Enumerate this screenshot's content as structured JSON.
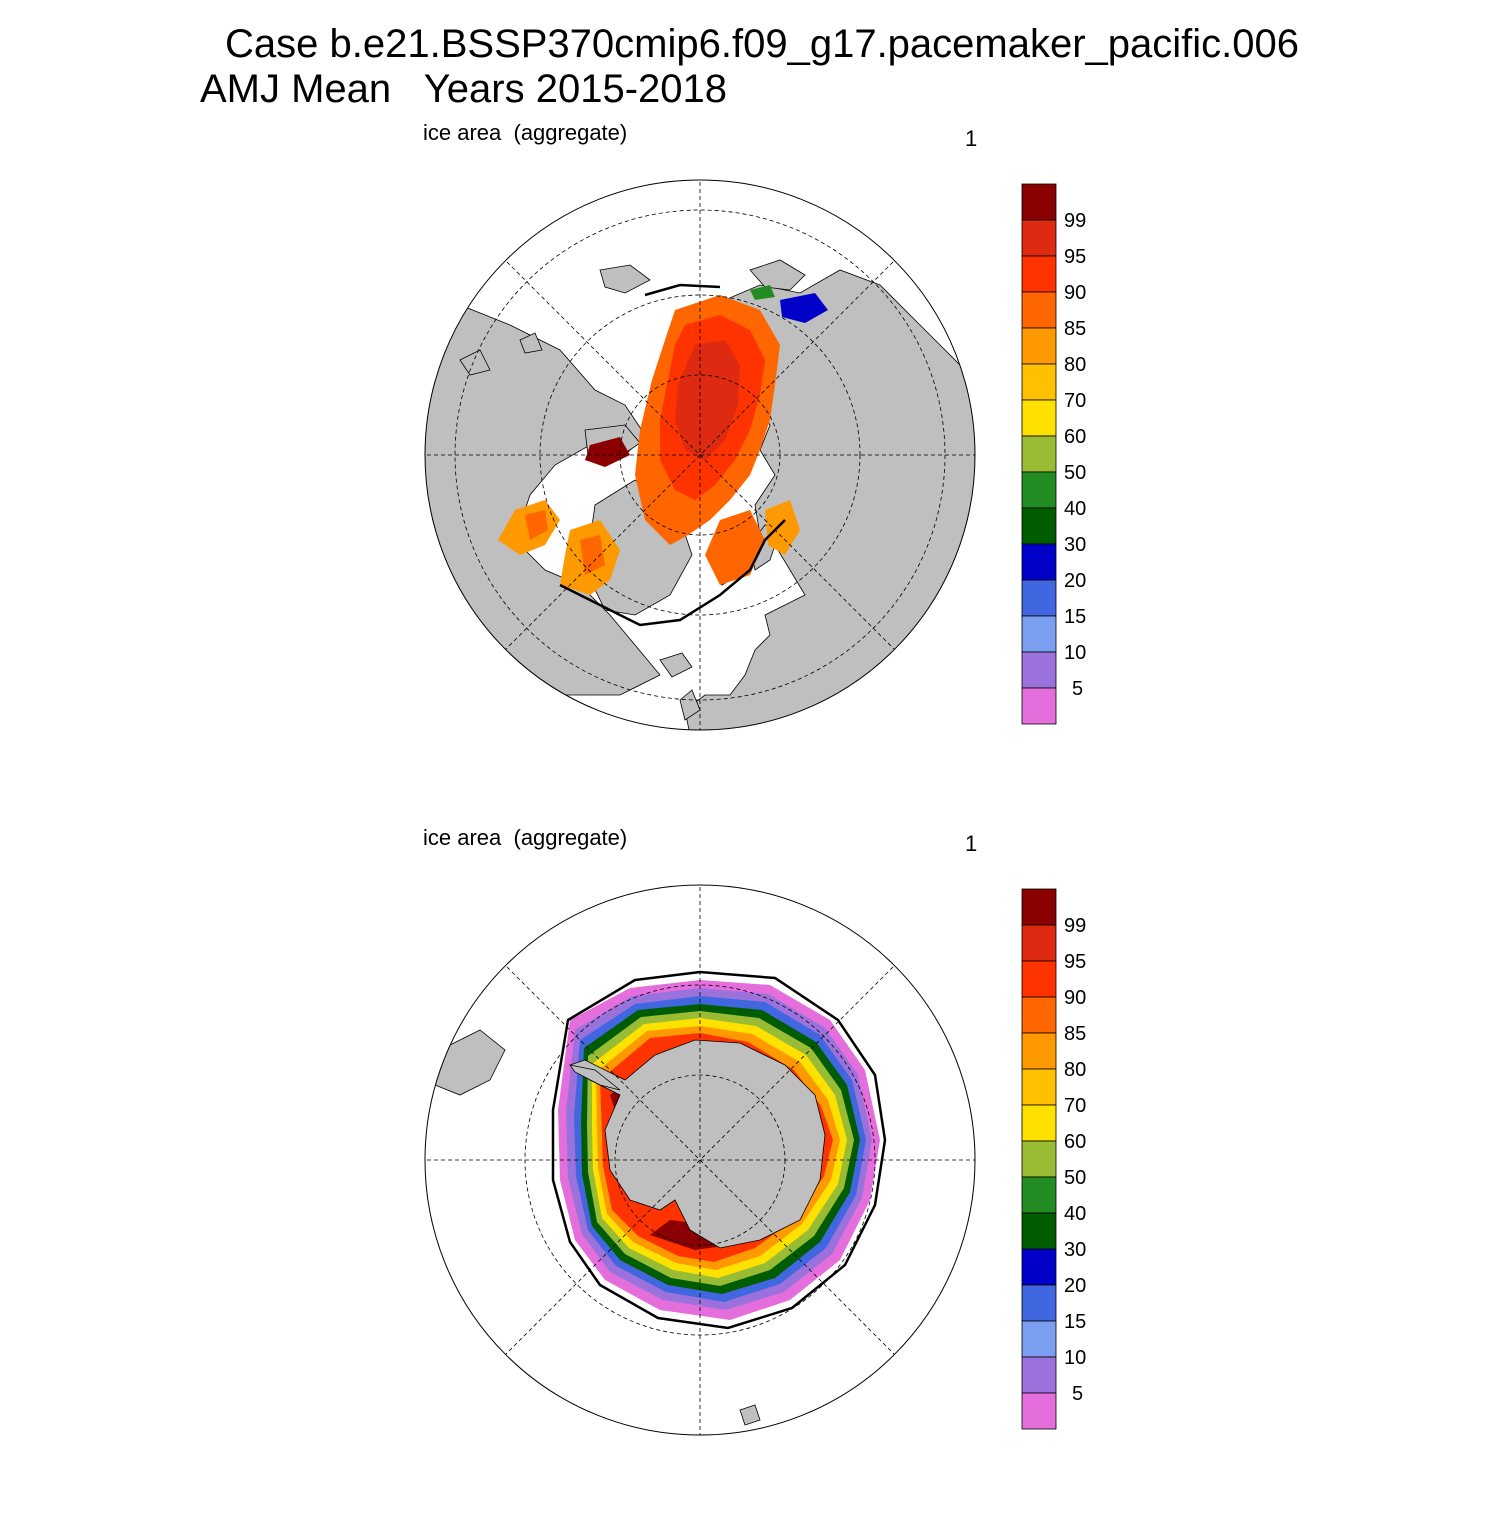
{
  "title": {
    "line1": "Case b.e21.BSSP370cmip6.f09_g17.pacemaker_pacific.006",
    "line2": "AMJ Mean   Years 2015-2018"
  },
  "panels": [
    {
      "id": "nh",
      "label": "ice area  (aggregate)",
      "corner": "1",
      "hemisphere": "north"
    },
    {
      "id": "sh",
      "label": "ice area  (aggregate)",
      "corner": "1",
      "hemisphere": "south"
    }
  ],
  "colorbar": {
    "levels": [
      "5",
      "10",
      "15",
      "20",
      "30",
      "40",
      "50",
      "60",
      "70",
      "80",
      "85",
      "90",
      "95",
      "99"
    ],
    "colors": [
      "#e46fdc",
      "#9b72dc",
      "#7b9ff0",
      "#4066e0",
      "#0000c8",
      "#005c00",
      "#228b22",
      "#98bc34",
      "#ffe100",
      "#ffc000",
      "#ff9900",
      "#ff6600",
      "#ff3300",
      "#dd2a10",
      "#8b0000"
    ],
    "land_color": "#bfbfbf",
    "missing_color": "#ffffff"
  }
}
